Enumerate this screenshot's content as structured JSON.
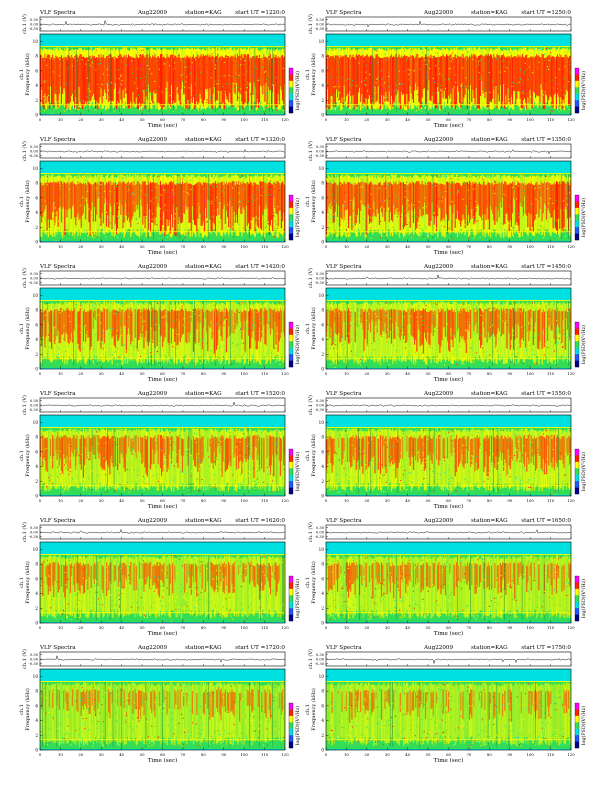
{
  "figure": {
    "panel_title_prefix": "VLF Spectra",
    "date": "Aug22009",
    "station": "station=KAG",
    "start_prefix": "start  UT  ="
  },
  "axes": {
    "ch1_label": "ch.1 (V)",
    "ch1_ticks": [
      "0.30",
      "0.00",
      "-0.30"
    ],
    "freq_label": "Frequency  (kHz)",
    "freq_side_label": "ch.1",
    "freq_ticks": [
      "0",
      "2",
      "4",
      "6",
      "8",
      "10"
    ],
    "time_label": "Time  (sec)",
    "time_ticks": [
      "0",
      "10",
      "20",
      "30",
      "40",
      "50",
      "60",
      "70",
      "80",
      "90",
      "100",
      "110",
      "120"
    ],
    "colorbar_label": "log(PSD)(V²/Hz)"
  },
  "colors": {
    "background_band": "#00e0e0",
    "low": "#33dd55",
    "mid": "#ffff00",
    "high": "#ff2200",
    "peak": "#ff00ff",
    "dropout": "#2255ff",
    "trace": "#000000"
  },
  "chart_data": {
    "type": "heatmap",
    "x_range": [
      0,
      120
    ],
    "y_range_freq_khz": [
      0,
      11
    ],
    "y_range_ch1_v": [
      -0.3,
      0.3
    ],
    "panels": [
      {
        "start_ut": "1220:0",
        "intensity": 0.92
      },
      {
        "start_ut": "1250:0",
        "intensity": 0.9
      },
      {
        "start_ut": "1320:0",
        "intensity": 0.72
      },
      {
        "start_ut": "1350:0",
        "intensity": 0.7
      },
      {
        "start_ut": "1420:0",
        "intensity": 0.55
      },
      {
        "start_ut": "1450:0",
        "intensity": 0.55
      },
      {
        "start_ut": "1520:0",
        "intensity": 0.52
      },
      {
        "start_ut": "1550:0",
        "intensity": 0.5
      },
      {
        "start_ut": "1620:0",
        "intensity": 0.4
      },
      {
        "start_ut": "1650:0",
        "intensity": 0.4
      },
      {
        "start_ut": "1720:0",
        "intensity": 0.3
      },
      {
        "start_ut": "1750:0",
        "intensity": 0.33
      }
    ]
  }
}
